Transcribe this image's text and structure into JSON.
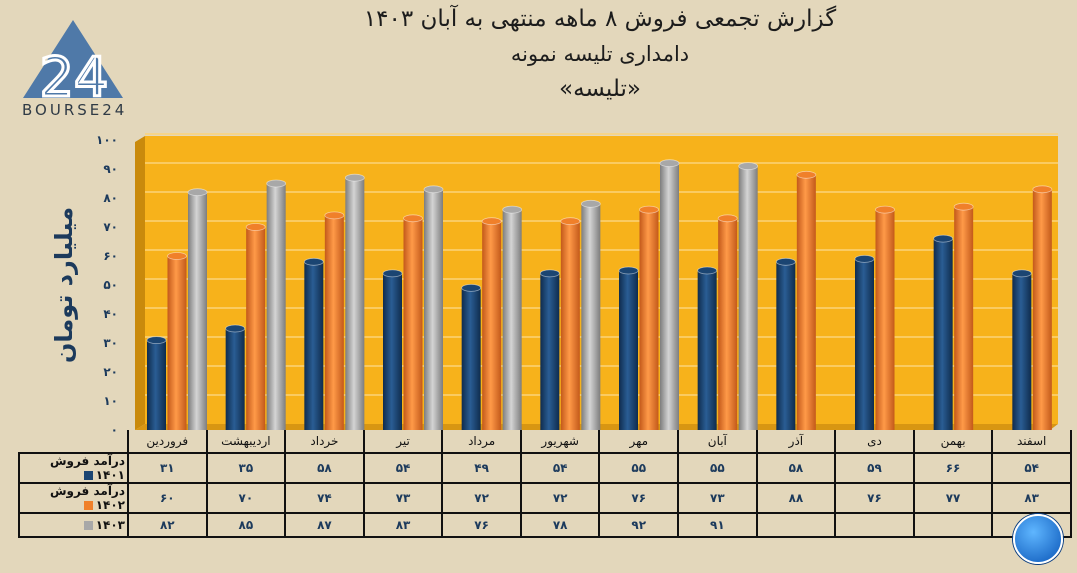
{
  "header": {
    "title": "گزارش تجمعی فروش ۸ ماهه منتهی به آبان ۱۴۰۳",
    "subtitle": "دامداری تلیسه نمونه",
    "ticker": "«تلیسه»"
  },
  "logo": {
    "text": "BOURSE24",
    "mark": "24"
  },
  "colors": {
    "background": "#e3d7bb",
    "plot": "#f7b21b",
    "s1401": "#1b4572",
    "s1402": "#f0802a",
    "s1403": "#a8a8a8"
  },
  "chart_data": {
    "type": "bar",
    "title": "گزارش تجمعی فروش ۸ ماهه منتهی به آبان ۱۴۰۳",
    "ylabel": "میلیارد تومان",
    "xlabel": "",
    "ylim": [
      0,
      100
    ],
    "yticks": [
      "۰",
      "۱۰",
      "۲۰",
      "۳۰",
      "۴۰",
      "۵۰",
      "۶۰",
      "۷۰",
      "۸۰",
      "۹۰",
      "۱۰۰"
    ],
    "grid": true,
    "legend": "table-bottom",
    "categories": [
      "فروردین",
      "اردیبهشت",
      "خرداد",
      "تیر",
      "مرداد",
      "شهریور",
      "مهر",
      "آبان",
      "آذر",
      "دی",
      "بهمن",
      "اسفند"
    ],
    "series": [
      {
        "name": "درآمد فروش ۱۴۰۱",
        "color": "#1b4572",
        "values": [
          31,
          35,
          58,
          54,
          49,
          54,
          55,
          55,
          58,
          59,
          66,
          54
        ]
      },
      {
        "name": "درآمد فروش ۱۴۰۲",
        "color": "#f0802a",
        "values": [
          60,
          70,
          74,
          73,
          72,
          72,
          76,
          73,
          88,
          76,
          77,
          83
        ]
      },
      {
        "name": "۱۴۰۳",
        "color": "#a8a8a8",
        "values": [
          82,
          85,
          87,
          83,
          76,
          78,
          92,
          91,
          null,
          null,
          null,
          null
        ]
      }
    ]
  }
}
